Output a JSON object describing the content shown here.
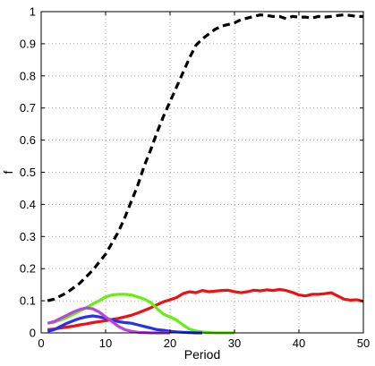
{
  "chart_data": {
    "type": "line",
    "title": "",
    "xlabel": "Period",
    "ylabel": "f",
    "xlim": [
      0,
      50
    ],
    "ylim": [
      0,
      1
    ],
    "x_ticks": [
      0,
      10,
      20,
      30,
      40,
      50
    ],
    "y_ticks": [
      0,
      0.1,
      0.2,
      0.3,
      0.4,
      0.5,
      0.6,
      0.7,
      0.8,
      0.9,
      1
    ],
    "x_tick_labels": [
      "0",
      "10",
      "20",
      "30",
      "40",
      "50"
    ],
    "y_tick_labels": [
      "0",
      "0.1",
      "0.2",
      "0.3",
      "0.4",
      "0.5",
      "0.6",
      "0.7",
      "0.8",
      "0.9",
      "1"
    ],
    "grid": true,
    "legend": "none",
    "series": [
      {
        "color": "#000000",
        "style": "dashed",
        "x": [
          1,
          2,
          3,
          4,
          5,
          6,
          7,
          8,
          9,
          10,
          11,
          12,
          13,
          14,
          15,
          16,
          17,
          18,
          19,
          20,
          21,
          22,
          23,
          24,
          25,
          26,
          27,
          28,
          29,
          30,
          31,
          32,
          33,
          34,
          35,
          36,
          37,
          38,
          39,
          40,
          41,
          42,
          43,
          44,
          45,
          46,
          47,
          48,
          49,
          50
        ],
        "y": [
          0.1,
          0.105,
          0.115,
          0.125,
          0.14,
          0.155,
          0.175,
          0.195,
          0.22,
          0.245,
          0.28,
          0.315,
          0.36,
          0.41,
          0.46,
          0.52,
          0.57,
          0.625,
          0.675,
          0.72,
          0.765,
          0.81,
          0.855,
          0.895,
          0.915,
          0.93,
          0.945,
          0.955,
          0.96,
          0.965,
          0.975,
          0.98,
          0.985,
          0.99,
          0.988,
          0.985,
          0.985,
          0.978,
          0.985,
          0.983,
          0.983,
          0.98,
          0.985,
          0.983,
          0.985,
          0.988,
          0.99,
          0.988,
          0.985,
          0.985
        ]
      },
      {
        "color": "#ee1111",
        "style": "solid",
        "x": [
          1,
          2,
          3,
          4,
          5,
          6,
          7,
          8,
          9,
          10,
          11,
          12,
          13,
          14,
          15,
          16,
          17,
          18,
          19,
          20,
          21,
          22,
          23,
          24,
          25,
          26,
          27,
          28,
          29,
          30,
          31,
          32,
          33,
          34,
          35,
          36,
          37,
          38,
          39,
          40,
          41,
          42,
          43,
          44,
          45,
          46,
          47,
          48,
          49,
          50
        ],
        "y": [
          0.01,
          0.012,
          0.015,
          0.018,
          0.021,
          0.025,
          0.028,
          0.032,
          0.035,
          0.038,
          0.042,
          0.045,
          0.05,
          0.055,
          0.062,
          0.07,
          0.078,
          0.088,
          0.097,
          0.103,
          0.11,
          0.122,
          0.128,
          0.125,
          0.132,
          0.128,
          0.13,
          0.132,
          0.133,
          0.128,
          0.125,
          0.128,
          0.133,
          0.131,
          0.134,
          0.132,
          0.135,
          0.132,
          0.126,
          0.118,
          0.115,
          0.12,
          0.12,
          0.122,
          0.125,
          0.115,
          0.105,
          0.102,
          0.103,
          0.098
        ]
      },
      {
        "color": "#66ee11",
        "style": "solid",
        "x": [
          1,
          2,
          3,
          4,
          5,
          6,
          7,
          8,
          9,
          10,
          11,
          12,
          13,
          14,
          15,
          16,
          17,
          18,
          19,
          20,
          21,
          22,
          23,
          24,
          25,
          26,
          27,
          28,
          29,
          30
        ],
        "y": [
          0.03,
          0.033,
          0.04,
          0.048,
          0.058,
          0.068,
          0.078,
          0.09,
          0.1,
          0.112,
          0.118,
          0.12,
          0.12,
          0.118,
          0.112,
          0.105,
          0.095,
          0.075,
          0.058,
          0.05,
          0.04,
          0.025,
          0.012,
          0.006,
          0.003,
          0.001,
          0,
          0,
          0,
          0
        ]
      },
      {
        "color": "#2233ee",
        "style": "solid",
        "x": [
          1,
          2,
          3,
          4,
          5,
          6,
          7,
          8,
          9,
          10,
          11,
          12,
          13,
          14,
          15,
          16,
          17,
          18,
          19,
          20,
          21,
          22,
          23,
          24,
          25
        ],
        "y": [
          0.005,
          0.01,
          0.02,
          0.03,
          0.038,
          0.045,
          0.05,
          0.053,
          0.05,
          0.045,
          0.04,
          0.035,
          0.032,
          0.03,
          0.025,
          0.02,
          0.015,
          0.01,
          0.008,
          0.005,
          0.003,
          0.002,
          0.001,
          0,
          0
        ]
      },
      {
        "color": "#bb44dd",
        "style": "solid",
        "x": [
          1,
          2,
          3,
          4,
          5,
          6,
          7,
          8,
          9,
          10,
          11,
          12,
          13,
          14,
          15,
          16,
          17,
          18,
          19,
          20
        ],
        "y": [
          0.03,
          0.035,
          0.045,
          0.055,
          0.065,
          0.073,
          0.078,
          0.075,
          0.065,
          0.05,
          0.035,
          0.02,
          0.01,
          0.005,
          0.002,
          0.001,
          0,
          0,
          0,
          0
        ]
      }
    ]
  }
}
